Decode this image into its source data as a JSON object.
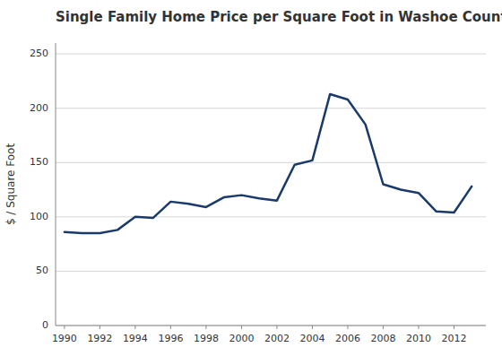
{
  "chart_data": {
    "type": "line",
    "title": "Single Family Home Price per Square Foot in Washoe County",
    "ylabel": "$ / Square Foot",
    "x": [
      1990,
      1991,
      1992,
      1993,
      1994,
      1995,
      1996,
      1997,
      1998,
      1999,
      2000,
      2001,
      2002,
      2003,
      2004,
      2005,
      2006,
      2007,
      2008,
      2009,
      2010,
      2011,
      2012,
      2013
    ],
    "values": [
      86,
      85,
      85,
      88,
      100,
      99,
      114,
      112,
      109,
      118,
      120,
      117,
      115,
      148,
      152,
      213,
      208,
      185,
      130,
      125,
      122,
      105,
      104,
      128
    ],
    "color": "#1a3a6b",
    "xlim": [
      1989.5,
      2013.8
    ],
    "xticks": [
      1990,
      1992,
      1994,
      1996,
      1998,
      2000,
      2002,
      2004,
      2006,
      2008,
      2010,
      2012
    ],
    "ylim": [
      0,
      260
    ],
    "yticks": [
      0,
      50,
      100,
      150,
      200,
      250
    ],
    "grid": true
  }
}
